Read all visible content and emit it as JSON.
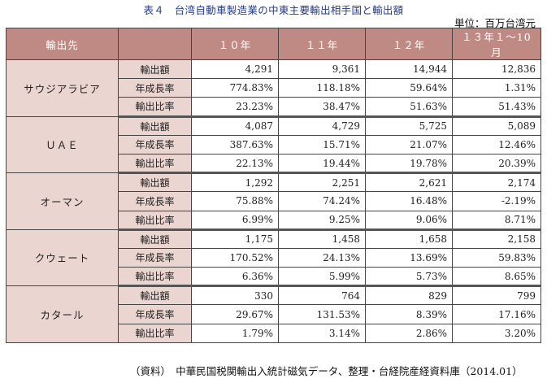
{
  "title": "表４　台湾自動車製造業の中東主要輸出相手国と輸出額",
  "unit": "単位：百万台湾元",
  "header": {
    "col0": "輸出先",
    "col1": "",
    "years": [
      "１０年",
      "１１年",
      "１２年",
      "１３年１～10月"
    ]
  },
  "rows": [
    {
      "country": "サウジアラビア",
      "metrics": [
        {
          "label": "輸出額",
          "values": [
            "4,291",
            "9,361",
            "14,944",
            "12,836"
          ]
        },
        {
          "label": "年成長率",
          "values": [
            "774.83%",
            "118.18%",
            "59.64%",
            "1.31%"
          ]
        },
        {
          "label": "輸出比率",
          "values": [
            "23.23%",
            "38.47%",
            "51.63%",
            "51.43%"
          ]
        }
      ]
    },
    {
      "country": "ＵＡＥ",
      "metrics": [
        {
          "label": "輸出額",
          "values": [
            "4,087",
            "4,729",
            "5,725",
            "5,089"
          ]
        },
        {
          "label": "年成長率",
          "values": [
            "387.63%",
            "15.71%",
            "21.07%",
            "12.46%"
          ]
        },
        {
          "label": "輸出比率",
          "values": [
            "22.13%",
            "19.44%",
            "19.78%",
            "20.39%"
          ]
        }
      ]
    },
    {
      "country": "オーマン",
      "metrics": [
        {
          "label": "輸出額",
          "values": [
            "1,292",
            "2,251",
            "2,621",
            "2,174"
          ]
        },
        {
          "label": "年成長率",
          "values": [
            "75.88%",
            "74.24%",
            "16.48%",
            "-2.19%"
          ]
        },
        {
          "label": "輸出比率",
          "values": [
            "6.99%",
            "9.25%",
            "9.06%",
            "8.71%"
          ]
        }
      ]
    },
    {
      "country": "クウェート",
      "metrics": [
        {
          "label": "輸出額",
          "values": [
            "1,175",
            "1,458",
            "1,658",
            "2,158"
          ]
        },
        {
          "label": "年成長率",
          "values": [
            "170.52%",
            "24.13%",
            "13.69%",
            "59.83%"
          ]
        },
        {
          "label": "輸出比率",
          "values": [
            "6.36%",
            "5.99%",
            "5.73%",
            "8.65%"
          ]
        }
      ]
    },
    {
      "country": "カタール",
      "metrics": [
        {
          "label": "輸出額",
          "values": [
            "330",
            "764",
            "829",
            "799"
          ]
        },
        {
          "label": "年成長率",
          "values": [
            "29.67%",
            "131.53%",
            "8.39%",
            "17.16%"
          ]
        },
        {
          "label": "輸出比率",
          "values": [
            "1.79%",
            "3.14%",
            "2.86%",
            "3.20%"
          ]
        }
      ]
    }
  ],
  "source": "（資料）　中華民国税関輸出入統計磁気データ、整理・台経院産経資料庫（2014.01）",
  "colors": {
    "header_bg": "#c08a84",
    "label_bg": "#ead5d1",
    "title_color": "#1f3a8a"
  }
}
